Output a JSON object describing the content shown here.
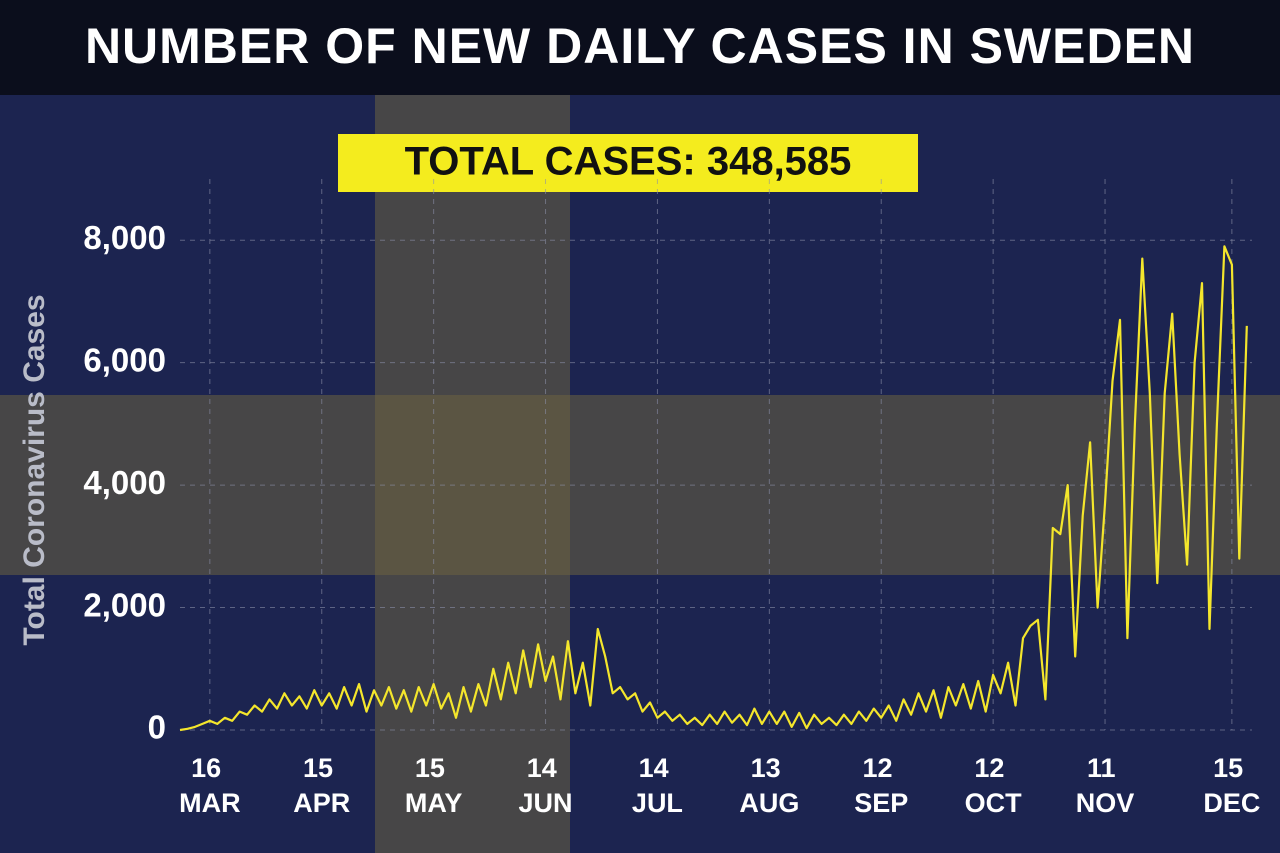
{
  "chart_data": {
    "type": "line",
    "title": "NUMBER OF NEW DAILY CASES IN SWEDEN",
    "annotation": "TOTAL CASES: 348,585",
    "y_label": "Total Coronavirus Cases",
    "ylim": [
      0,
      9000
    ],
    "yticks": [
      0,
      {
        "value": 2000,
        "label": "2,000"
      },
      {
        "value": 4000,
        "label": "4,000"
      },
      {
        "value": 6000,
        "label": "6,000"
      },
      {
        "value": 8000,
        "label": "8,000"
      }
    ],
    "grid": true,
    "categories": [
      null,
      null,
      null,
      null,
      "16 MAR",
      null,
      null,
      null,
      null,
      null,
      null,
      null,
      null,
      null,
      null,
      null,
      null,
      null,
      null,
      "15 APR",
      null,
      null,
      null,
      null,
      null,
      null,
      null,
      null,
      null,
      null,
      null,
      null,
      null,
      null,
      "15 MAY",
      null,
      null,
      null,
      null,
      null,
      null,
      null,
      null,
      null,
      null,
      null,
      null,
      null,
      null,
      "14 JUN",
      null,
      null,
      null,
      null,
      null,
      null,
      null,
      null,
      null,
      null,
      null,
      null,
      null,
      null,
      "14 JUL",
      null,
      null,
      null,
      null,
      null,
      null,
      null,
      null,
      null,
      null,
      null,
      null,
      null,
      null,
      "13 AUG",
      null,
      null,
      null,
      null,
      null,
      null,
      null,
      null,
      null,
      null,
      null,
      null,
      null,
      null,
      "12 SEP",
      null,
      null,
      null,
      null,
      null,
      null,
      null,
      null,
      null,
      null,
      null,
      null,
      null,
      null,
      "12 OCT",
      null,
      null,
      null,
      null,
      null,
      null,
      null,
      null,
      null,
      null,
      null,
      null,
      null,
      null,
      "11 NOV",
      null,
      null,
      null,
      null,
      null,
      null,
      null,
      null,
      null,
      null,
      null,
      null,
      null,
      null,
      null,
      null,
      "15 DEC",
      null,
      null
    ],
    "series": [
      {
        "name": "New daily cases",
        "color": "#f4e62c",
        "values": [
          0,
          20,
          50,
          100,
          150,
          100,
          200,
          150,
          300,
          250,
          400,
          300,
          500,
          350,
          600,
          400,
          550,
          350,
          650,
          400,
          600,
          350,
          700,
          400,
          750,
          300,
          650,
          400,
          700,
          350,
          650,
          300,
          700,
          400,
          750,
          350,
          600,
          200,
          700,
          300,
          750,
          400,
          1000,
          500,
          1100,
          600,
          1300,
          700,
          1400,
          800,
          1200,
          500,
          1450,
          600,
          1100,
          400,
          1650,
          1200,
          600,
          700,
          500,
          600,
          300,
          450,
          200,
          300,
          150,
          250,
          100,
          200,
          80,
          250,
          100,
          300,
          120,
          250,
          80,
          350,
          100,
          300,
          100,
          300,
          50,
          280,
          30,
          250,
          100,
          200,
          80,
          250,
          100,
          300,
          150,
          350,
          200,
          400,
          150,
          500,
          250,
          600,
          300,
          650,
          200,
          700,
          400,
          750,
          350,
          800,
          300,
          900,
          600,
          1100,
          400,
          1500,
          1700,
          1800,
          500,
          3300,
          3200,
          4000,
          1200,
          3500,
          4700,
          2000,
          3700,
          5700,
          6700,
          1500,
          5000,
          7700,
          5500,
          2400,
          5500,
          6800,
          4500,
          2700,
          6000,
          7300,
          1650,
          5000,
          7900,
          7600,
          2800,
          6600
        ]
      }
    ]
  }
}
